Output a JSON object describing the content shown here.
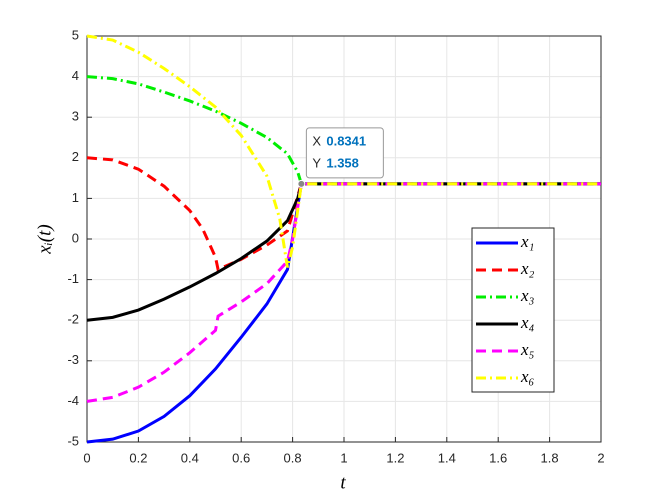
{
  "chart_data": {
    "type": "line",
    "xlabel": "t",
    "ylabel": "xᵢ(t)",
    "xlim": [
      0,
      2
    ],
    "ylim": [
      -5,
      5
    ],
    "xticks": [
      0,
      0.2,
      0.4,
      0.6,
      0.8,
      1,
      1.2,
      1.4,
      1.6,
      1.8,
      2
    ],
    "yticks": [
      -5,
      -4,
      -3,
      -2,
      -1,
      0,
      1,
      2,
      3,
      4,
      5
    ],
    "grid": true,
    "legend": "lower right",
    "series": [
      {
        "name": "x₁",
        "color": "#0000ff",
        "style": "solid",
        "x": [
          0,
          0.1,
          0.2,
          0.3,
          0.4,
          0.5,
          0.6,
          0.7,
          0.78,
          0.8341,
          2
        ],
        "values": [
          -5,
          -4.93,
          -4.73,
          -4.37,
          -3.86,
          -3.2,
          -2.42,
          -1.6,
          -0.75,
          1.358,
          1.358
        ]
      },
      {
        "name": "x₂",
        "color": "#ff0000",
        "style": "dashed",
        "x": [
          0,
          0.1,
          0.2,
          0.3,
          0.4,
          0.45,
          0.5,
          0.51,
          0.6,
          0.7,
          0.78,
          0.8341,
          2
        ],
        "values": [
          2,
          1.95,
          1.72,
          1.3,
          0.7,
          0.25,
          -0.45,
          -0.75,
          -0.5,
          -0.15,
          0.2,
          1.358,
          1.358
        ]
      },
      {
        "name": "x₃",
        "color": "#00ee00",
        "style": "dashdot",
        "x": [
          0,
          0.1,
          0.2,
          0.3,
          0.4,
          0.5,
          0.6,
          0.7,
          0.78,
          0.82,
          0.8341,
          2
        ],
        "values": [
          4,
          3.95,
          3.82,
          3.62,
          3.4,
          3.15,
          2.85,
          2.5,
          2.1,
          1.65,
          1.358,
          1.358
        ]
      },
      {
        "name": "x₄",
        "color": "#000000",
        "style": "solid",
        "x": [
          0,
          0.1,
          0.2,
          0.3,
          0.4,
          0.5,
          0.6,
          0.7,
          0.78,
          0.82,
          0.8341,
          2
        ],
        "values": [
          -2,
          -1.93,
          -1.75,
          -1.48,
          -1.18,
          -0.85,
          -0.48,
          -0.05,
          0.45,
          1.0,
          1.358,
          1.358
        ]
      },
      {
        "name": "x₅",
        "color": "#ff00ff",
        "style": "dashed",
        "x": [
          0,
          0.1,
          0.2,
          0.3,
          0.4,
          0.5,
          0.51,
          0.6,
          0.7,
          0.78,
          0.8,
          0.8341,
          2
        ],
        "values": [
          -4,
          -3.9,
          -3.65,
          -3.28,
          -2.8,
          -2.25,
          -1.9,
          -1.55,
          -1.1,
          -0.55,
          0,
          1.358,
          1.358
        ]
      },
      {
        "name": "x₆",
        "color": "#ffff00",
        "style": "dashdot",
        "x": [
          0,
          0.1,
          0.2,
          0.3,
          0.4,
          0.5,
          0.6,
          0.7,
          0.75,
          0.78,
          0.8,
          0.8341,
          2
        ],
        "values": [
          5,
          4.9,
          4.6,
          4.2,
          3.75,
          3.25,
          2.55,
          1.55,
          0.5,
          -0.7,
          -0.2,
          1.358,
          1.358
        ]
      }
    ],
    "datatip": {
      "x_label": "X",
      "x": 0.8341,
      "y_label": "Y",
      "y": 1.358
    }
  }
}
